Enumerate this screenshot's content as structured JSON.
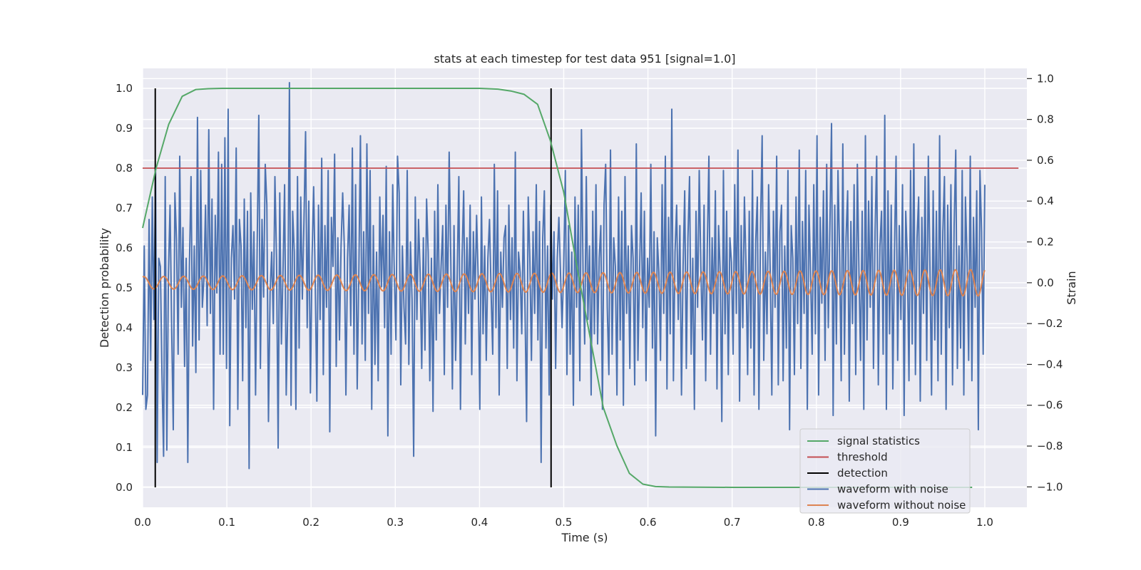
{
  "chart_data": {
    "type": "line",
    "title": "stats at each timestep for test data 951 [signal=1.0]",
    "xlabel": "Time (s)",
    "ylabel": "Detection probability",
    "y2label": "Strain",
    "xlim": [
      0.0,
      1.05
    ],
    "ylim": [
      -0.05,
      1.05
    ],
    "y2lim": [
      -1.1,
      1.05
    ],
    "x_ticks": [
      "0.0",
      "0.1",
      "0.2",
      "0.3",
      "0.4",
      "0.5",
      "0.6",
      "0.7",
      "0.8",
      "0.9",
      "1.0"
    ],
    "y_ticks": [
      "0.0",
      "0.1",
      "0.2",
      "0.3",
      "0.4",
      "0.5",
      "0.6",
      "0.7",
      "0.8",
      "0.9",
      "1.0"
    ],
    "y2_ticks": [
      "−1.0",
      "−0.8",
      "−0.6",
      "−0.4",
      "−0.2",
      "0.0",
      "0.2",
      "0.4",
      "0.6",
      "0.8",
      "1.0"
    ],
    "grid": true,
    "legend_position": "lower-right",
    "colors": {
      "signal_statistics": "#55a868",
      "threshold": "#c44e52",
      "detection": "#000000",
      "waveform_with_noise": "#4c72b0",
      "waveform_without_noise": "#dd8452",
      "plot_background": "#eaeaf2",
      "grid": "#ffffff"
    },
    "legend": [
      {
        "label": "signal statistics",
        "color": "#55a868"
      },
      {
        "label": "threshold",
        "color": "#c44e52"
      },
      {
        "label": "detection",
        "color": "#000000"
      },
      {
        "label": "waveform with noise",
        "color": "#4c72b0"
      },
      {
        "label": "waveform without noise",
        "color": "#dd8452"
      }
    ],
    "series": [
      {
        "name": "signal statistics",
        "axis": "left",
        "x": [
          0.0,
          0.016,
          0.031,
          0.047,
          0.063,
          0.078,
          0.094,
          0.125,
          0.2,
          0.3,
          0.4,
          0.422,
          0.438,
          0.453,
          0.469,
          0.484,
          0.5,
          0.516,
          0.531,
          0.547,
          0.563,
          0.578,
          0.594,
          0.609,
          0.625,
          0.7,
          0.8,
          0.9,
          0.985
        ],
        "values": [
          0.65,
          0.8,
          0.91,
          0.98,
          0.997,
          0.999,
          1.0,
          1.0,
          1.0,
          1.0,
          1.0,
          0.998,
          0.993,
          0.985,
          0.96,
          0.87,
          0.74,
          0.55,
          0.38,
          0.2,
          0.105,
          0.035,
          0.008,
          0.002,
          0.001,
          0.0,
          0.0,
          0.0,
          0.0
        ]
      },
      {
        "name": "threshold",
        "axis": "left",
        "x": [
          0.0,
          1.04
        ],
        "values": [
          0.8,
          0.8
        ]
      },
      {
        "name": "detection",
        "axis": "left",
        "segments": [
          {
            "x": 0.015,
            "y": [
              0.0,
              1.0
            ]
          },
          {
            "x": 0.485,
            "y": [
              0.0,
              1.0
            ]
          }
        ]
      },
      {
        "name": "waveform with noise",
        "axis": "right",
        "x_range": [
          0.0,
          1.0
        ],
        "values": [
          -0.55,
          0.18,
          -0.62,
          -0.55,
          0.31,
          -0.38,
          0.42,
          -0.18,
          0.55,
          -0.88,
          0.12,
          0.08,
          -0.45,
          -0.85,
          0.52,
          -0.82,
          0.04,
          0.38,
          -0.22,
          -0.72,
          0.44,
          0.21,
          -0.35,
          0.62,
          -0.12,
          0.27,
          -0.41,
          0.12,
          -0.88,
          0.08,
          0.52,
          -0.31,
          0.18,
          -0.44,
          0.81,
          -0.28,
          0.55,
          -0.12,
          0.02,
          0.38,
          -0.21,
          0.75,
          -0.15,
          0.41,
          -0.62,
          0.33,
          -0.05,
          0.64,
          -0.35,
          0.58,
          -0.35,
          0.71,
          -0.42,
          0.85,
          -0.7,
          0.12,
          0.28,
          -0.08,
          0.66,
          -0.62,
          0.31,
          0.18,
          -0.48,
          0.41,
          -0.22,
          0.35,
          -0.91,
          0.44,
          -0.13,
          0.25,
          -0.55,
          0.18,
          0.82,
          -0.42,
          0.31,
          -0.07,
          0.58,
          0.38,
          -0.68,
          -0.05,
          0.15,
          -0.2,
          0.52,
          0.12,
          -0.81,
          0.44,
          -0.3,
          0.05,
          0.48,
          -0.55,
          -0.12,
          0.98,
          -0.6,
          0.35,
          0.15,
          -0.62,
          0.52,
          -0.32,
          0.42,
          -0.08,
          0.3,
          0.74,
          -0.22,
          0.4,
          -0.54,
          0.12,
          0.47,
          0.0,
          -0.58,
          0.38,
          -0.18,
          0.61,
          -0.45,
          0.28,
          -0.12,
          0.55,
          -0.73,
          0.32,
          0.08,
          0.63,
          -0.41,
          0.22,
          -0.28,
          0.18,
          0.44,
          0.18,
          -0.55,
          0.12,
          0.38,
          -0.21,
          0.66,
          -0.35,
          0.48,
          -0.52,
          0.04,
          0.72,
          -0.3,
          0.25,
          -0.38,
          0.68,
          -0.15,
          0.55,
          -0.62,
          0.28,
          -0.4,
          0.15,
          -0.48,
          0.42,
          -0.02,
          0.33,
          -0.22,
          0.57,
          -0.75,
          0.25,
          -0.35,
          0.48,
          0.05,
          -0.28,
          0.62,
          0.44,
          -0.5,
          0.18,
          -0.12,
          -0.3,
          0.55,
          -0.4,
          0.2,
          -0.08,
          -0.85,
          0.42,
          -0.18,
          0.31,
          0.05,
          -0.42,
          0.22,
          -0.33,
          0.41,
          0.15,
          -0.48,
          0.12,
          -0.63,
          0.35,
          -0.28,
          0.48,
          -0.15,
          0.08,
          0.28,
          -0.45,
          0.38,
          -0.12,
          0.64,
          0.12,
          -0.52,
          0.28,
          -0.38,
          0.05,
          0.52,
          -0.62,
          0.12,
          0.45,
          -0.3,
          0.22,
          -0.15,
          0.38,
          -0.45,
          0.25,
          -0.08,
          0.33,
          0.02,
          -0.62,
          0.42,
          -0.25,
          0.18,
          -0.38,
          0.12,
          0.31,
          -0.05,
          -0.35,
          0.58,
          -0.22,
          0.45,
          -0.55,
          0.15,
          -0.12,
          0.22,
          0.28,
          -0.42,
          0.38,
          -0.18,
          0.22,
          -0.32,
          0.64,
          -0.48,
          0.15,
          0.05,
          -0.25,
          0.35,
          -0.12,
          -0.68,
          0.42,
          0.12,
          -0.38,
          0.25,
          -0.15,
          0.48,
          -0.28,
          0.3,
          -0.88,
          0.22,
          0.45,
          -0.32,
          0.18,
          -0.55,
          0.38,
          -0.08,
          0.25,
          -0.42,
          0.12,
          0.32,
          0.05,
          -0.22,
          0.08,
          0.55,
          -0.45,
          0.28,
          -0.35,
          0.15,
          -0.6,
          0.42,
          -0.12,
          0.38,
          -0.48,
          0.75,
          0.05,
          -0.3,
          0.52,
          -0.18,
          0.18,
          -0.55,
          0.35,
          -0.25,
          0.48,
          -0.3,
          0.12,
          0.28,
          -0.62,
          0.38,
          0.58,
          -0.12,
          -0.45,
          0.65,
          -0.35,
          0.22,
          0.08,
          -0.55,
          0.42,
          -0.28,
          0.35,
          -0.6,
          0.52,
          -0.15,
          0.18,
          -0.42,
          0.28,
          0.12,
          -0.5,
          0.68,
          -0.38,
          0.05,
          0.44,
          -0.22,
          0.35,
          -0.48,
          0.12,
          -0.12,
          0.58,
          -0.32,
          0.25,
          -0.75,
          0.22,
          0.05,
          -0.38,
          0.48,
          -0.15,
          0.62,
          -0.52,
          0.32,
          -0.25,
          0.85,
          -0.48,
          0.15,
          0.38,
          -0.18,
          0.28,
          -0.55,
          0.08,
          0.45,
          -0.42,
          0.22,
          0.52,
          -0.35,
          0.12,
          -0.62,
          0.35,
          -0.12,
          0.55,
          0.08,
          -0.28,
          0.38,
          -0.48,
          0.18,
          0.62,
          -0.35,
          0.22,
          -0.15,
          0.45,
          -0.52,
          0.28,
          0.05,
          -0.68,
          0.55,
          -0.25,
          0.35,
          -0.45,
          0.22,
          0.1,
          -0.35,
          0.48,
          -0.15,
          0.65,
          -0.58,
          0.28,
          -0.22,
          0.42,
          0.08,
          -0.45,
          0.35,
          -0.32,
          0.55,
          -0.55,
          0.2,
          0.42,
          -0.62,
          0.28,
          0.72,
          -0.38,
          0.15,
          -0.25,
          0.48,
          0.05,
          -0.55,
          0.35,
          -0.12,
          0.62,
          -0.5,
          0.25,
          0.38,
          -0.48,
          0.18,
          -0.32,
          0.55,
          -0.72,
          0.28,
          0.12,
          -0.45,
          0.42,
          -0.2,
          0.65,
          -0.42,
          0.3,
          -0.15,
          0.55,
          -0.62,
          0.38,
          0.05,
          -0.35,
          0.48,
          -0.25,
          0.72,
          -0.55,
          0.32,
          -0.1,
          0.45,
          -0.38,
          0.58,
          -0.22,
          0.28,
          0.78,
          -0.65,
          0.38,
          -0.3,
          0.55,
          0.15,
          -0.48,
          0.68,
          -0.35,
          0.22,
          0.45,
          -0.58,
          0.3,
          -0.2,
          0.48,
          -0.45,
          0.58,
          0.05,
          -0.38,
          0.35,
          -0.62,
          0.72,
          -0.28,
          0.4,
          -0.12,
          0.52,
          -0.42,
          0.25,
          0.62,
          -0.5,
          0.18,
          0.35,
          -0.35,
          0.82,
          -0.62,
          0.45,
          -0.25,
          0.38,
          -0.52,
          0.15,
          0.62,
          -0.38,
          0.28,
          -0.18,
          0.48,
          -0.65,
          0.35,
          0.12,
          -0.48,
          0.55,
          -0.3,
          0.68,
          -0.45,
          0.22,
          0.42,
          -0.58,
          0.32,
          -0.15,
          0.52,
          -0.38,
          0.62,
          0.08,
          -0.55,
          0.45,
          -0.28,
          0.35,
          -0.48,
          0.72,
          -0.35,
          0.25,
          0.52,
          -0.62,
          0.38,
          -0.22,
          0.48,
          -0.5,
          0.28,
          0.65,
          -0.42,
          0.18,
          -0.32,
          0.55,
          -0.55,
          0.42,
          0.12,
          -0.38,
          0.62,
          -0.48,
          0.32,
          -0.12,
          0.45,
          -0.72,
          0.55,
          0.25,
          -0.35,
          0.48
        ]
      },
      {
        "name": "waveform without noise",
        "axis": "right",
        "model": "chirp",
        "x_range": [
          0.0,
          1.0
        ],
        "amplitude_start": 0.03,
        "amplitude_end": 0.065,
        "frequency_start_hz": 42,
        "frequency_end_hz": 56
      }
    ]
  }
}
